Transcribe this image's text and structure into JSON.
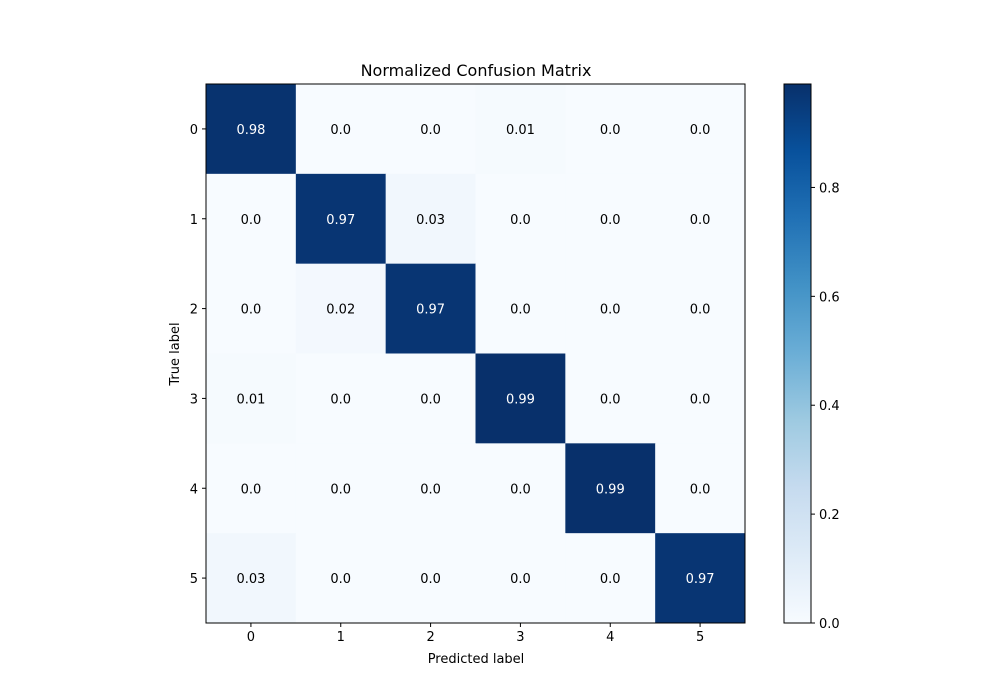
{
  "chart_data": {
    "type": "heatmap",
    "title": "Normalized Confusion Matrix",
    "xlabel": "Predicted label",
    "ylabel": "True label",
    "x_categories": [
      "0",
      "1",
      "2",
      "3",
      "4",
      "5"
    ],
    "y_categories": [
      "0",
      "1",
      "2",
      "3",
      "4",
      "5"
    ],
    "values": [
      [
        0.98,
        0.0,
        0.0,
        0.01,
        0.0,
        0.0
      ],
      [
        0.0,
        0.97,
        0.03,
        0.0,
        0.0,
        0.0
      ],
      [
        0.0,
        0.02,
        0.97,
        0.0,
        0.0,
        0.0
      ],
      [
        0.01,
        0.0,
        0.0,
        0.99,
        0.0,
        0.0
      ],
      [
        0.0,
        0.0,
        0.0,
        0.0,
        0.99,
        0.0
      ],
      [
        0.03,
        0.0,
        0.0,
        0.0,
        0.0,
        0.97
      ]
    ],
    "cell_labels": [
      [
        "0.98",
        "0.0",
        "0.0",
        "0.01",
        "0.0",
        "0.0"
      ],
      [
        "0.0",
        "0.97",
        "0.03",
        "0.0",
        "0.0",
        "0.0"
      ],
      [
        "0.0",
        "0.02",
        "0.97",
        "0.0",
        "0.0",
        "0.0"
      ],
      [
        "0.01",
        "0.0",
        "0.0",
        "0.99",
        "0.0",
        "0.0"
      ],
      [
        "0.0",
        "0.0",
        "0.0",
        "0.0",
        "0.99",
        "0.0"
      ],
      [
        "0.03",
        "0.0",
        "0.0",
        "0.0",
        "0.0",
        "0.97"
      ]
    ],
    "colorscale": "Blues",
    "colorbar": {
      "range": [
        0,
        0.99
      ],
      "ticks": [
        0.0,
        0.2,
        0.4,
        0.6,
        0.8
      ],
      "tick_labels": [
        "0.0",
        "0.2",
        "0.4",
        "0.6",
        "0.8"
      ]
    },
    "grid": false,
    "legend": "none"
  }
}
